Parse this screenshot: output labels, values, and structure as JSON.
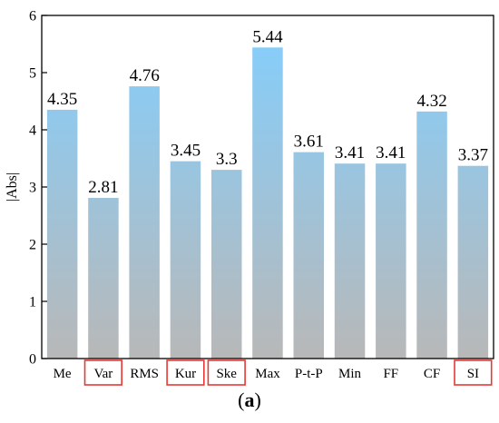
{
  "colors": {
    "bar_top": "#82CFFF",
    "bar_bottom": "#B8B8B8",
    "highlight_box": "#E53935",
    "axis": "#000000"
  },
  "caption": {
    "open": "(",
    "letter": "a",
    "close": ")"
  },
  "chart_data": {
    "type": "bar",
    "title": "",
    "xlabel": "",
    "ylabel": "|Abs|",
    "ylim": [
      0,
      6
    ],
    "yticks": [
      0,
      1,
      2,
      3,
      4,
      5,
      6
    ],
    "grid": false,
    "legend": "none",
    "categories": [
      "Me",
      "Var",
      "RMS",
      "Kur",
      "Ske",
      "Max",
      "P-t-P",
      "Min",
      "FF",
      "CF",
      "SI"
    ],
    "values": [
      4.35,
      2.81,
      4.76,
      3.45,
      3.3,
      5.44,
      3.61,
      3.41,
      3.41,
      4.32,
      3.37
    ],
    "value_labels": [
      "4.35",
      "2.81",
      "4.76",
      "3.45",
      "3.3",
      "5.44",
      "3.61",
      "3.41",
      "3.41",
      "4.32",
      "3.37"
    ],
    "highlighted_categories": [
      "Var",
      "Kur",
      "Ske",
      "SI"
    ],
    "bar_fill": "vertical gradient sky-blue to grey"
  }
}
